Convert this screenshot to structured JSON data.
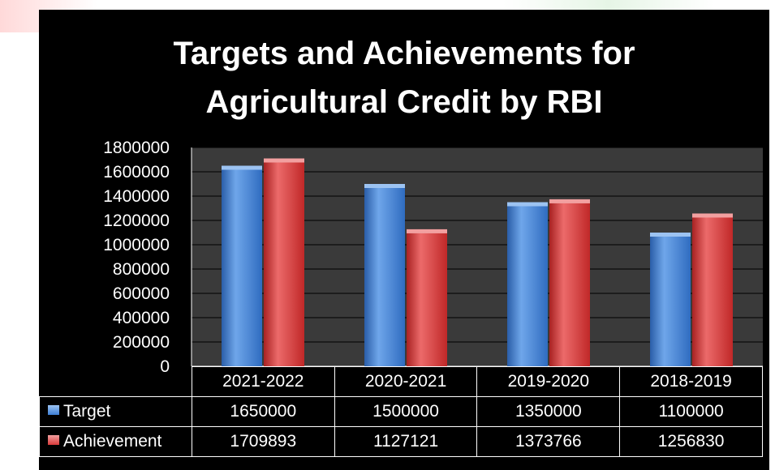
{
  "colors": {
    "panel_bg": "#000000",
    "plot_bg": "#3a3a3a",
    "target": "#3d7fd6",
    "achievement": "#d93a3a",
    "text": "#ffffff"
  },
  "chart_data": {
    "type": "bar",
    "title_lines": [
      "Targets and Achievements for",
      "Agricultural Credit by RBI"
    ],
    "categories": [
      "2021-2022",
      "2020-2021",
      "2019-2020",
      "2018-2019"
    ],
    "series": [
      {
        "name": "Target",
        "values": [
          1650000,
          1500000,
          1350000,
          1100000
        ],
        "color": "#3d7fd6",
        "labels": [
          "1650000",
          "1500000",
          "1350000",
          "1100000"
        ]
      },
      {
        "name": "Achievement",
        "values": [
          1709893,
          1127121,
          1373766,
          1256830
        ],
        "color": "#d93a3a",
        "labels": [
          "1709893",
          "1127121",
          "1373766",
          "1256830"
        ]
      }
    ],
    "ylim": [
      0,
      1800000
    ],
    "yticks": [
      "0",
      "200000",
      "400000",
      "600000",
      "800000",
      "1000000",
      "1200000",
      "1400000",
      "1600000",
      "1800000"
    ],
    "grid": true,
    "legend": "data-table"
  }
}
